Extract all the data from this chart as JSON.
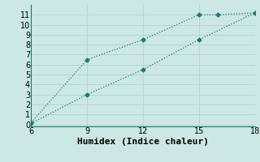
{
  "title": "",
  "xlabel": "Humidex (Indice chaleur)",
  "ylabel": "",
  "xlim": [
    6,
    18
  ],
  "ylim": [
    -0.2,
    12
  ],
  "xticks": [
    6,
    9,
    12,
    15,
    18
  ],
  "yticks": [
    0,
    1,
    2,
    3,
    4,
    5,
    6,
    7,
    8,
    9,
    10,
    11
  ],
  "line1_x": [
    6,
    9,
    12,
    15,
    16,
    18
  ],
  "line1_y": [
    0.2,
    6.5,
    8.5,
    11.0,
    11.0,
    11.2
  ],
  "line2_x": [
    6,
    9,
    12,
    15,
    18
  ],
  "line2_y": [
    0.1,
    3.0,
    5.5,
    8.5,
    11.2
  ],
  "line_color": "#1a7a6e",
  "bg_color": "#cce8e4",
  "grid_color": "#b8d5d0",
  "marker": "D",
  "marker_size": 2.5,
  "linewidth": 0.9,
  "xlabel_fontsize": 8,
  "tick_fontsize": 7
}
